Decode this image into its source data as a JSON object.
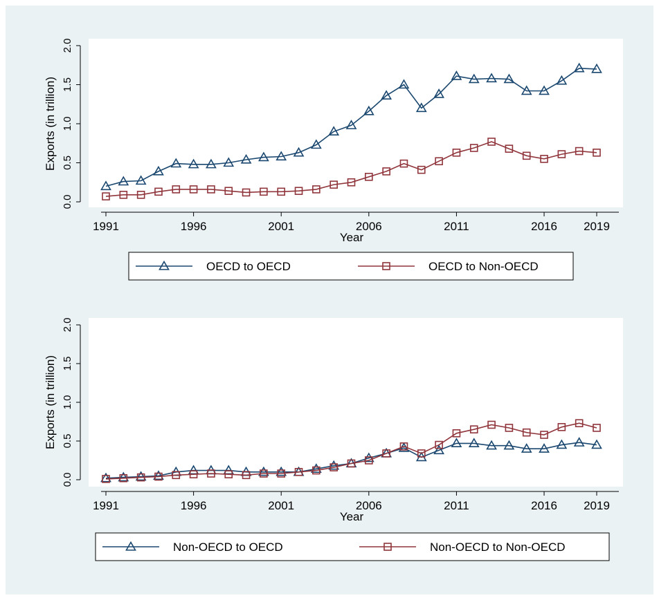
{
  "colors": {
    "figure_bg": "#eaf2f3",
    "plot_bg": "#ffffff",
    "series_blue": "#1a476f",
    "series_red": "#90353b",
    "axis": "#000000"
  },
  "chart_data": [
    {
      "type": "line",
      "title": "",
      "xlabel": "Year",
      "ylabel": "Exports (in trillion)",
      "xlim": [
        1991,
        2019
      ],
      "ylim": [
        0,
        2
      ],
      "xticks": [
        "1991",
        "1996",
        "2001",
        "2006",
        "2011",
        "2016",
        "2019"
      ],
      "yticks": [
        "0.0",
        "0.5",
        "1.0",
        "1.5",
        "2.0"
      ],
      "grid": false,
      "legend_position": "bottom",
      "x": [
        1991,
        1992,
        1993,
        1994,
        1995,
        1996,
        1997,
        1998,
        1999,
        2000,
        2001,
        2002,
        2003,
        2004,
        2005,
        2006,
        2007,
        2008,
        2009,
        2010,
        2011,
        2012,
        2013,
        2014,
        2015,
        2016,
        2017,
        2018,
        2019
      ],
      "series": [
        {
          "name": "OECD to OECD",
          "marker": "triangle",
          "color": "#1a476f",
          "values": [
            0.2,
            0.26,
            0.27,
            0.39,
            0.49,
            0.48,
            0.48,
            0.5,
            0.54,
            0.57,
            0.58,
            0.63,
            0.73,
            0.9,
            0.98,
            1.16,
            1.36,
            1.5,
            1.2,
            1.38,
            1.61,
            1.57,
            1.58,
            1.57,
            1.42,
            1.42,
            1.55,
            1.71,
            1.7
          ]
        },
        {
          "name": "OECD to Non-OECD",
          "marker": "square",
          "color": "#90353b",
          "values": [
            0.07,
            0.09,
            0.09,
            0.13,
            0.16,
            0.16,
            0.16,
            0.14,
            0.12,
            0.13,
            0.13,
            0.14,
            0.16,
            0.22,
            0.25,
            0.32,
            0.39,
            0.49,
            0.41,
            0.52,
            0.63,
            0.69,
            0.77,
            0.68,
            0.59,
            0.55,
            0.61,
            0.65,
            0.63
          ]
        }
      ]
    },
    {
      "type": "line",
      "title": "",
      "xlabel": "Year",
      "ylabel": "Exports (in trillion)",
      "xlim": [
        1991,
        2019
      ],
      "ylim": [
        0,
        2
      ],
      "xticks": [
        "1991",
        "1996",
        "2001",
        "2006",
        "2011",
        "2016",
        "2019"
      ],
      "yticks": [
        "0.0",
        "0.5",
        "1.0",
        "1.5",
        "2.0"
      ],
      "grid": false,
      "legend_position": "bottom",
      "x": [
        1991,
        1992,
        1993,
        1994,
        1995,
        1996,
        1997,
        1998,
        1999,
        2000,
        2001,
        2002,
        2003,
        2004,
        2005,
        2006,
        2007,
        2008,
        2009,
        2010,
        2011,
        2012,
        2013,
        2014,
        2015,
        2016,
        2017,
        2018,
        2019
      ],
      "series": [
        {
          "name": "Non-OECD to OECD",
          "marker": "triangle",
          "color": "#1a476f",
          "values": [
            0.02,
            0.03,
            0.04,
            0.05,
            0.1,
            0.12,
            0.12,
            0.12,
            0.1,
            0.1,
            0.1,
            0.1,
            0.14,
            0.18,
            0.21,
            0.28,
            0.34,
            0.41,
            0.29,
            0.38,
            0.47,
            0.47,
            0.44,
            0.44,
            0.4,
            0.4,
            0.45,
            0.48,
            0.45
          ]
        },
        {
          "name": "Non-OECD to Non-OECD",
          "marker": "square",
          "color": "#90353b",
          "values": [
            0.01,
            0.02,
            0.03,
            0.04,
            0.06,
            0.07,
            0.08,
            0.07,
            0.06,
            0.08,
            0.08,
            0.1,
            0.12,
            0.16,
            0.21,
            0.25,
            0.34,
            0.43,
            0.34,
            0.45,
            0.6,
            0.65,
            0.71,
            0.67,
            0.61,
            0.58,
            0.68,
            0.73,
            0.67
          ]
        }
      ]
    }
  ]
}
